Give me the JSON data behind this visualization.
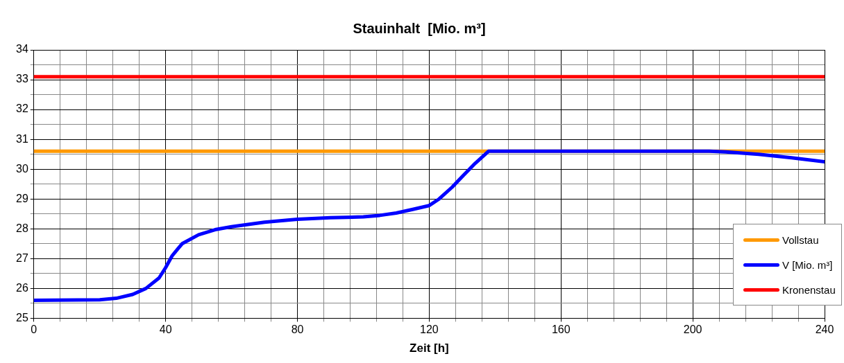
{
  "chart_data": {
    "type": "line",
    "title": "Stauinhalt  [Mio. m³]",
    "xlabel": "Zeit [h]",
    "xlim": [
      0,
      240
    ],
    "xticks": [
      0,
      {
        "value": 8,
        "label": null
      },
      {
        "value": 16,
        "label": null
      },
      {
        "value": 24,
        "label": null
      },
      {
        "value": 32,
        "label": null
      },
      40,
      {
        "value": 48,
        "label": null
      },
      {
        "value": 56,
        "label": null
      },
      {
        "value": 64,
        "label": null
      },
      {
        "value": 72,
        "label": null
      },
      80,
      {
        "value": 88,
        "label": null
      },
      {
        "value": 96,
        "label": null
      },
      {
        "value": 104,
        "label": null
      },
      {
        "value": 112,
        "label": null
      },
      120,
      {
        "value": 128,
        "label": null
      },
      {
        "value": 136,
        "label": null
      },
      {
        "value": 144,
        "label": null
      },
      {
        "value": 152,
        "label": null
      },
      160,
      {
        "value": 168,
        "label": null
      },
      {
        "value": 176,
        "label": null
      },
      {
        "value": 184,
        "label": null
      },
      {
        "value": 192,
        "label": null
      },
      200,
      {
        "value": 208,
        "label": null
      },
      {
        "value": 216,
        "label": null
      },
      {
        "value": 224,
        "label": null
      },
      {
        "value": 232,
        "label": null
      },
      240
    ],
    "ylim": [
      25,
      34
    ],
    "yticks": [
      25,
      {
        "value": 25.5,
        "label": null
      },
      26,
      {
        "value": 26.5,
        "label": null
      },
      27,
      {
        "value": 27.5,
        "label": null
      },
      28,
      {
        "value": 28.5,
        "label": null
      },
      29,
      {
        "value": 29.5,
        "label": null
      },
      30,
      {
        "value": 30.5,
        "label": null
      },
      31,
      {
        "value": 31.5,
        "label": null
      },
      32,
      {
        "value": 32.5,
        "label": null
      },
      33,
      {
        "value": 33.5,
        "label": null
      },
      34
    ],
    "grid": true,
    "legend": "bottom right",
    "marker": "none",
    "line_style": "solid",
    "series": [
      {
        "name": "Vollstau",
        "color": "#ff9900",
        "x": [
          0,
          240
        ],
        "values": [
          30.6,
          30.6
        ]
      },
      {
        "name": "V [Mio. m³]",
        "color": "#0000ff",
        "x": [
          0,
          20,
          25,
          30,
          34,
          38,
          40,
          42,
          45,
          50,
          55,
          60,
          70,
          80,
          90,
          100,
          105,
          110,
          115,
          120,
          123,
          127,
          130,
          134,
          138,
          140,
          205,
          210,
          220,
          230,
          240
        ],
        "values": [
          25.6,
          25.62,
          25.67,
          25.8,
          26.0,
          26.35,
          26.7,
          27.1,
          27.5,
          27.8,
          27.97,
          28.07,
          28.22,
          28.32,
          28.37,
          28.4,
          28.45,
          28.53,
          28.65,
          28.78,
          29.0,
          29.4,
          29.75,
          30.2,
          30.6,
          30.6,
          30.6,
          30.58,
          30.5,
          30.38,
          30.25
        ]
      },
      {
        "name": "Kronenstau",
        "color": "#ff0000",
        "x": [
          0,
          240
        ],
        "values": [
          33.1,
          33.1
        ]
      }
    ]
  }
}
